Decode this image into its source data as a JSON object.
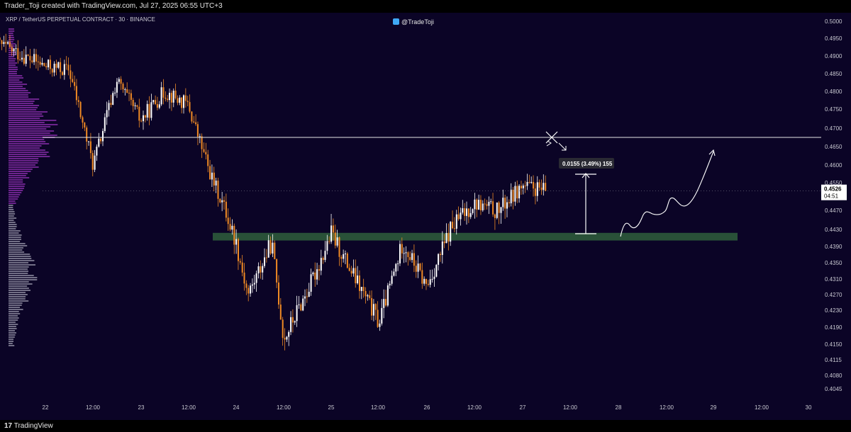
{
  "header": {
    "credit": "Trader_Toji created with TradingView.com, Jul 27, 2025 06:55 UTC+3"
  },
  "footer": {
    "brand_mark": "17",
    "brand": "TradingView"
  },
  "chart_data": {
    "type": "candlestick",
    "title": "XRPUSDT",
    "symbol_line": "XRP / TetherUS PERPETUAL CONTRACT · 30 · BINANCE",
    "watermark": "@TradeToji",
    "y_ticks": [
      "0.5000",
      "0.4950",
      "0.4900",
      "0.4850",
      "0.4800",
      "0.4750",
      "0.4700",
      "0.4650",
      "0.4600",
      "0.4550",
      "0.4470",
      "0.4430",
      "0.4390",
      "0.4350",
      "0.4310",
      "0.4270",
      "0.4230",
      "0.4190",
      "0.4150",
      "0.4115",
      "0.4080",
      "0.4045"
    ],
    "x_ticks": [
      "22",
      "12:00",
      "23",
      "12:00",
      "24",
      "12:00",
      "25",
      "12:00",
      "26",
      "12:00",
      "27",
      "12:00",
      "28",
      "12:00",
      "29",
      "12:00",
      "30"
    ],
    "current_price": "0.4526",
    "countdown": "04:51",
    "resistance_level": 0.4675,
    "support_zone": [
      0.4404,
      0.4422
    ],
    "measure_label": "0.0155 (3.49%) 155",
    "colors": {
      "up": "#ffffff",
      "down": "#f08a24",
      "zone": "#2c5a3b",
      "background": "#0b0426",
      "profile_upper": "#8e2fb0",
      "profile_lower": "#c9c9d6"
    },
    "close_path": [
      [
        "Jul 21 12:00",
        0.4935
      ],
      [
        "Jul 22 00:00",
        0.487
      ],
      [
        "Jul 22 06:00",
        0.486
      ],
      [
        "Jul 22 12:00",
        0.46
      ],
      [
        "Jul 22 18:00",
        0.483
      ],
      [
        "Jul 23 00:00",
        0.472
      ],
      [
        "Jul 23 06:00",
        0.48
      ],
      [
        "Jul 23 12:00",
        0.476
      ],
      [
        "Jul 23 18:00",
        0.456
      ],
      [
        "Jul 24 00:00",
        0.44
      ],
      [
        "Jul 24 03:00",
        0.427
      ],
      [
        "Jul 24 09:00",
        0.44
      ],
      [
        "Jul 24 12:00",
        0.416
      ],
      [
        "Jul 24 18:00",
        0.428
      ],
      [
        "Jul 25 00:00",
        0.442
      ],
      [
        "Jul 25 06:00",
        0.431
      ],
      [
        "Jul 25 12:00",
        0.42
      ],
      [
        "Jul 25 18:00",
        0.44
      ],
      [
        "Jul 26 00:00",
        0.429
      ],
      [
        "Jul 26 06:00",
        0.443
      ],
      [
        "Jul 26 12:00",
        0.449
      ],
      [
        "Jul 26 18:00",
        0.447
      ],
      [
        "Jul 27 00:00",
        0.454
      ],
      [
        "Jul 27 06:00",
        0.4526
      ]
    ]
  }
}
